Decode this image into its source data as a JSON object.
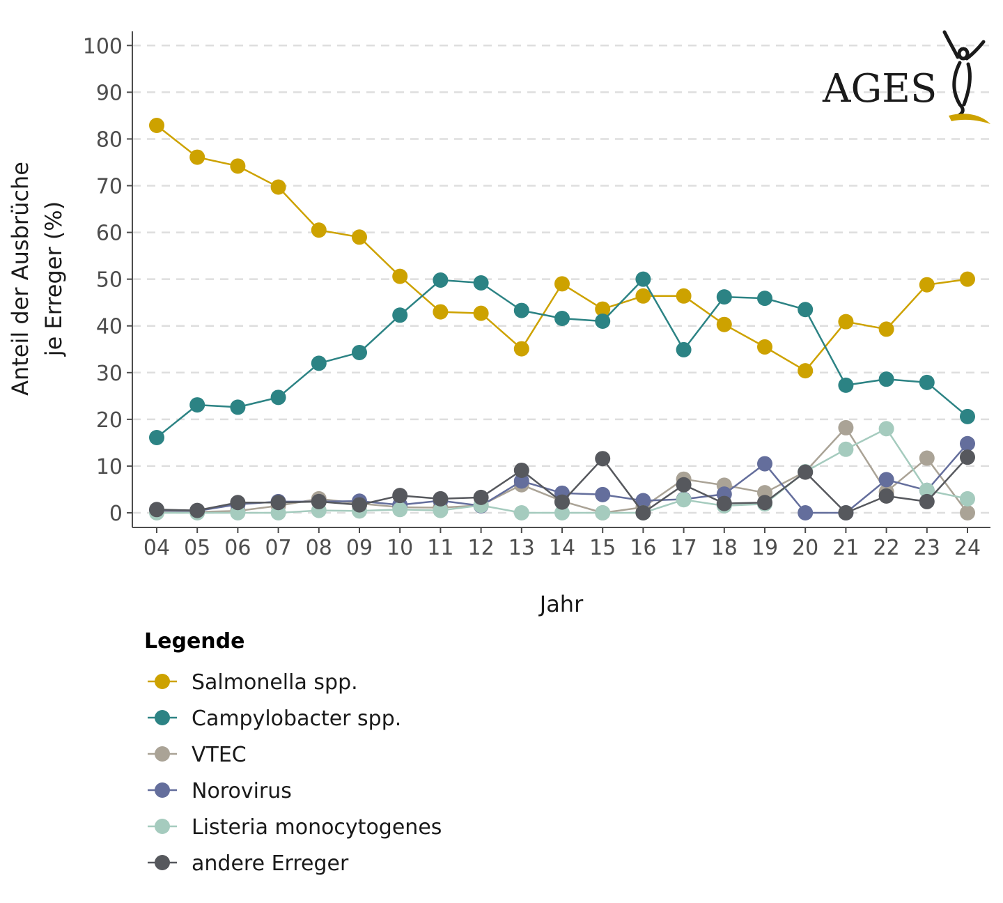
{
  "chart_data": {
    "type": "line",
    "xlabel": "Jahr",
    "ylabel_lines": [
      "Anteil der Ausbrüche",
      "je Erreger (%)"
    ],
    "x": [
      "04",
      "05",
      "06",
      "07",
      "08",
      "09",
      "10",
      "11",
      "12",
      "13",
      "14",
      "15",
      "16",
      "17",
      "18",
      "19",
      "20",
      "21",
      "22",
      "23",
      "24"
    ],
    "ylim": [
      0,
      100
    ],
    "yticks": [
      0,
      10,
      20,
      30,
      40,
      50,
      60,
      70,
      80,
      90,
      100
    ],
    "grid": "horizontal dashed",
    "legend_title": "Legende",
    "legend_position": "bottom-left",
    "series": [
      {
        "name": "Salmonella spp.",
        "color": "#CDA200",
        "values": [
          82.9,
          76.1,
          74.2,
          69.7,
          60.5,
          59.0,
          50.6,
          43.0,
          42.7,
          35.1,
          49.0,
          43.6,
          46.4,
          46.4,
          40.3,
          35.5,
          30.4,
          40.9,
          39.3,
          48.8,
          50.0
        ]
      },
      {
        "name": "Campylobacter spp.",
        "color": "#2C8384",
        "values": [
          16.1,
          23.1,
          22.6,
          24.7,
          32.0,
          34.3,
          42.3,
          49.8,
          49.2,
          43.3,
          41.6,
          41.0,
          50.0,
          34.9,
          46.2,
          45.9,
          43.5,
          27.3,
          28.6,
          27.9,
          20.6
        ]
      },
      {
        "name": "VTEC",
        "color": "#AAA396",
        "values": [
          0.3,
          0.2,
          0.4,
          1.5,
          3.0,
          2.0,
          1.2,
          1.1,
          1.6,
          6.0,
          2.5,
          0.0,
          1.2,
          7.2,
          5.9,
          4.3,
          8.8,
          18.2,
          4.5,
          11.7,
          0.0
        ]
      },
      {
        "name": "Norovirus",
        "color": "#646E9C",
        "values": [
          0.5,
          0.4,
          1.8,
          2.4,
          2.4,
          2.5,
          1.7,
          2.6,
          1.5,
          6.8,
          4.2,
          3.9,
          2.6,
          2.9,
          4.0,
          10.5,
          0.0,
          0.0,
          7.1,
          4.8,
          14.8
        ]
      },
      {
        "name": "Listeria monocytogenes",
        "color": "#A5CBBE",
        "values": [
          0.0,
          0.0,
          0.0,
          0.0,
          0.5,
          0.4,
          0.7,
          0.5,
          1.6,
          0.0,
          0.0,
          0.0,
          0.0,
          2.8,
          1.5,
          1.9,
          8.8,
          13.6,
          18.0,
          4.8,
          3.0
        ]
      },
      {
        "name": "andere Erreger",
        "color": "#56585D",
        "values": [
          0.7,
          0.5,
          2.2,
          2.2,
          2.4,
          1.7,
          3.7,
          3.0,
          3.3,
          9.1,
          2.3,
          11.6,
          0.0,
          6.0,
          2.0,
          2.2,
          8.7,
          0.0,
          3.6,
          2.4,
          11.9
        ]
      }
    ]
  },
  "logo": {
    "text": "AGES",
    "colors": {
      "figure": "#1a1a1a",
      "swoosh": "#CDA200"
    }
  }
}
